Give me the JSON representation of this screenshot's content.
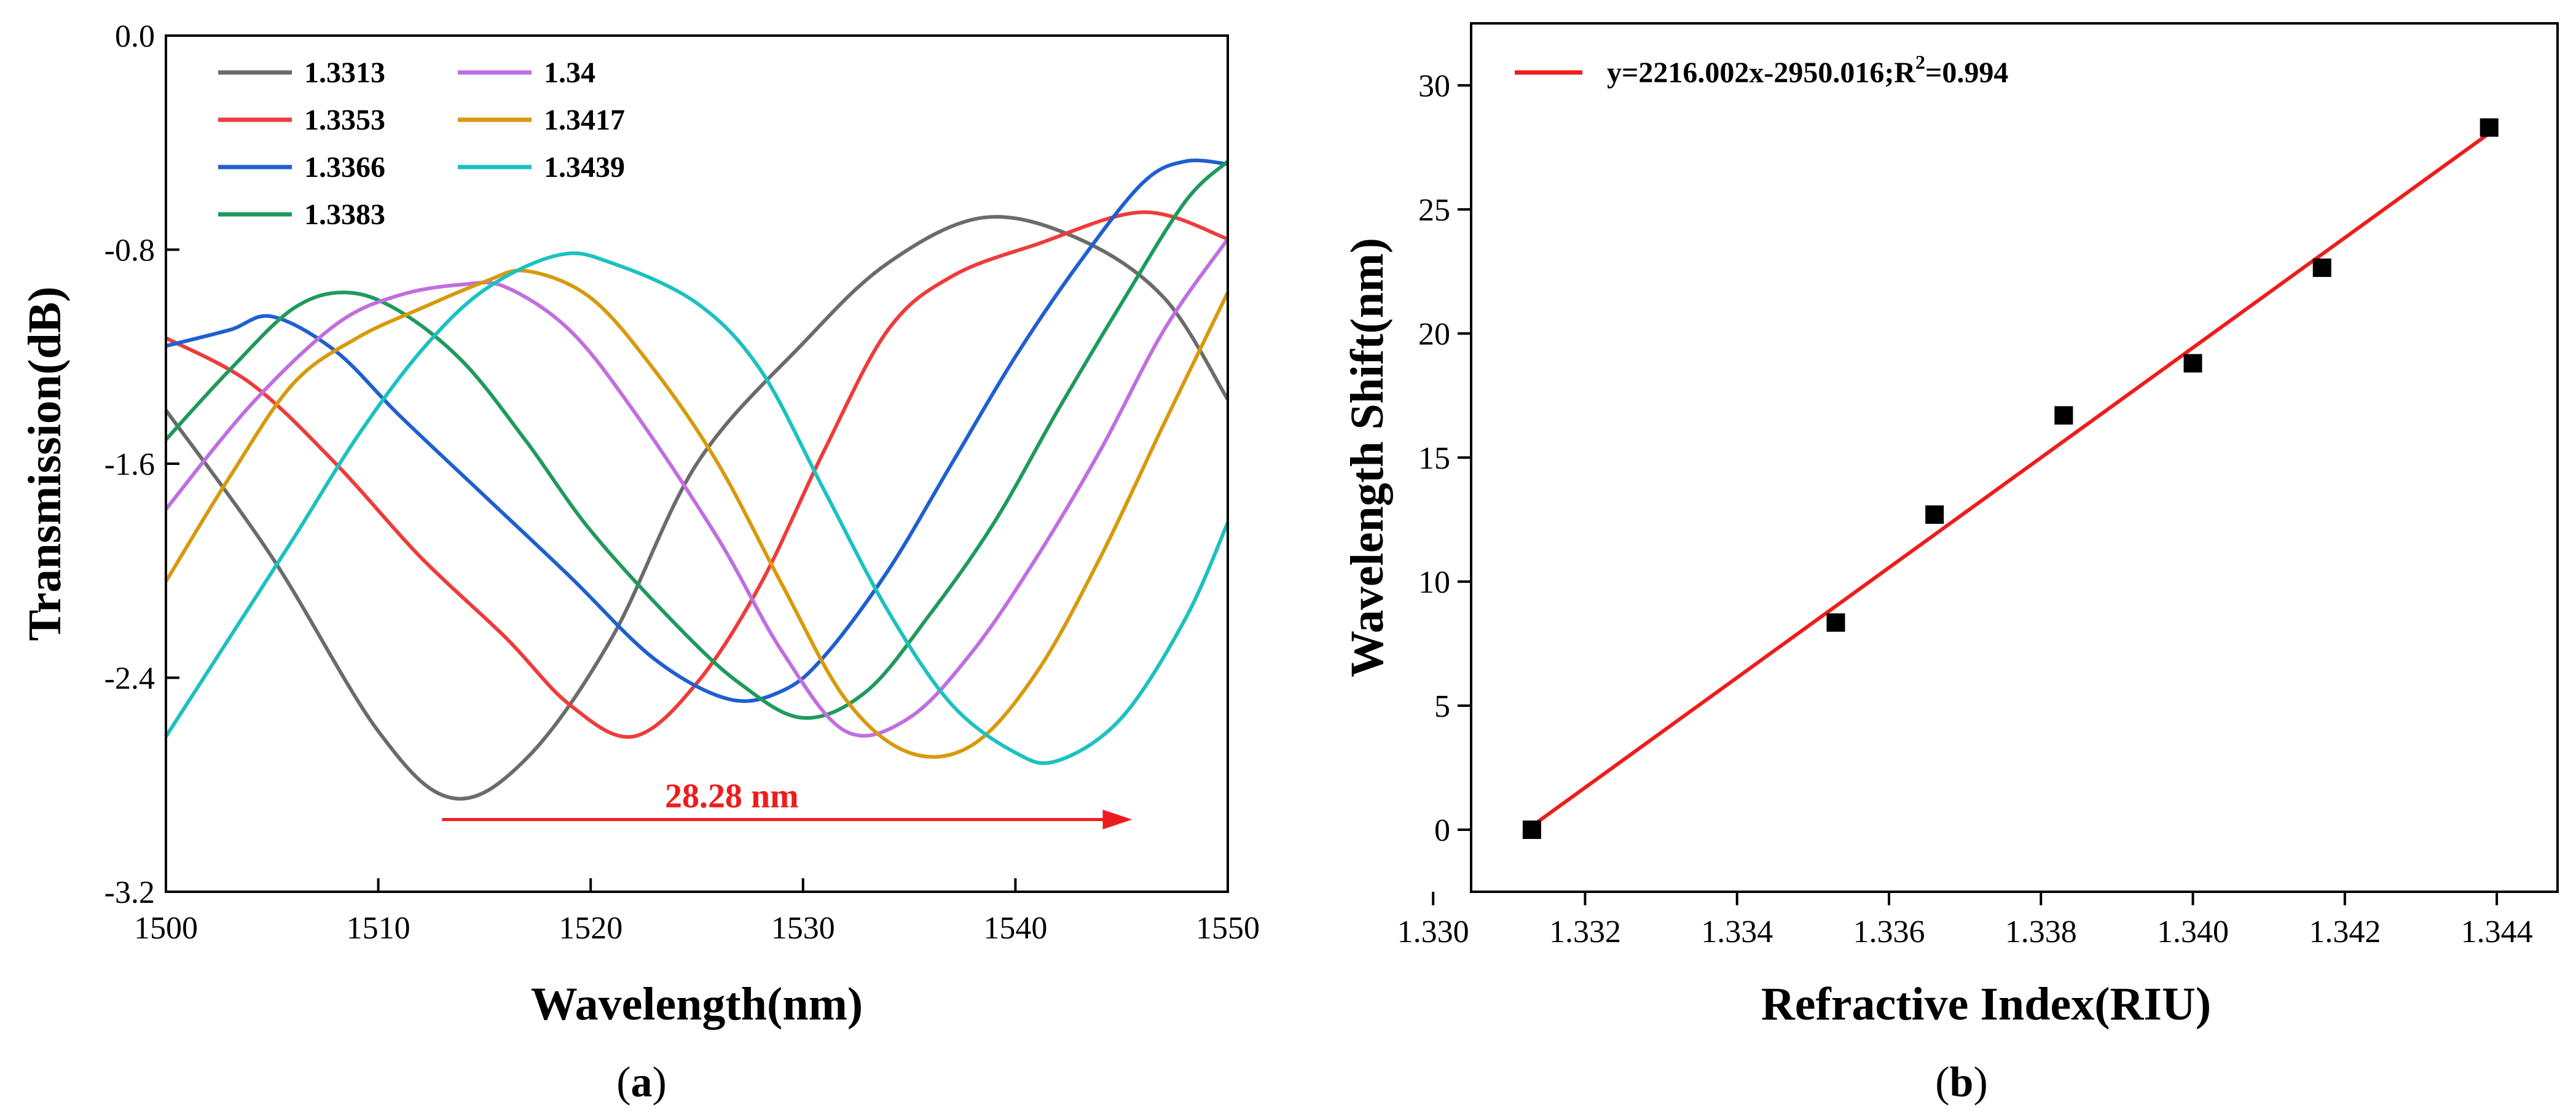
{
  "chart_data": [
    {
      "type": "line",
      "panel_label": "(a)",
      "panel_letter": "a",
      "xlabel": "Wavelength(nm)",
      "ylabel": "Transmission(dB)",
      "xlim": [
        1500,
        1550
      ],
      "ylim": [
        -3.2,
        0.0
      ],
      "x_ticks": [
        1500,
        1510,
        1520,
        1530,
        1540,
        1550
      ],
      "y_ticks": [
        0.0,
        -0.8,
        -1.6,
        -2.4,
        -3.2
      ],
      "y_tick_labels": [
        "0.0",
        "-0.8",
        "-1.6",
        "-2.4",
        "-3.2"
      ],
      "legend_columns": 2,
      "series": [
        {
          "name": "1.3313",
          "color": "#6b6b6b",
          "points": [
            [
              1500,
              -1.4
            ],
            [
              1505,
              -1.95
            ],
            [
              1510,
              -2.6
            ],
            [
              1513.5,
              -2.85
            ],
            [
              1517,
              -2.7
            ],
            [
              1521,
              -2.25
            ],
            [
              1525,
              -1.6
            ],
            [
              1530,
              -1.15
            ],
            [
              1534,
              -0.85
            ],
            [
              1538.5,
              -0.68
            ],
            [
              1543,
              -0.76
            ],
            [
              1547,
              -0.98
            ],
            [
              1550,
              -1.36
            ]
          ]
        },
        {
          "name": "1.3353",
          "color": "#ee3b3b",
          "points": [
            [
              1500,
              -1.13
            ],
            [
              1504,
              -1.3
            ],
            [
              1508,
              -1.6
            ],
            [
              1512,
              -1.95
            ],
            [
              1516,
              -2.25
            ],
            [
              1519,
              -2.5
            ],
            [
              1522,
              -2.62
            ],
            [
              1525,
              -2.42
            ],
            [
              1528,
              -2.05
            ],
            [
              1531,
              -1.55
            ],
            [
              1534,
              -1.1
            ],
            [
              1537,
              -0.9
            ],
            [
              1541,
              -0.78
            ],
            [
              1546,
              -0.66
            ],
            [
              1550,
              -0.76
            ]
          ]
        },
        {
          "name": "1.3366",
          "color": "#1f5fd0",
          "points": [
            [
              1500,
              -1.16
            ],
            [
              1503,
              -1.1
            ],
            [
              1505,
              -1.05
            ],
            [
              1508,
              -1.18
            ],
            [
              1511,
              -1.42
            ],
            [
              1515,
              -1.72
            ],
            [
              1519,
              -2.02
            ],
            [
              1523,
              -2.33
            ],
            [
              1526.5,
              -2.48
            ],
            [
              1529,
              -2.45
            ],
            [
              1531,
              -2.32
            ],
            [
              1534,
              -2.0
            ],
            [
              1537,
              -1.6
            ],
            [
              1540,
              -1.2
            ],
            [
              1543,
              -0.85
            ],
            [
              1546,
              -0.55
            ],
            [
              1548,
              -0.47
            ],
            [
              1550,
              -0.48
            ]
          ]
        },
        {
          "name": "1.3383",
          "color": "#1f9a5c",
          "points": [
            [
              1500,
              -1.51
            ],
            [
              1503,
              -1.25
            ],
            [
              1506,
              -1.02
            ],
            [
              1508.5,
              -0.96
            ],
            [
              1511,
              -1.03
            ],
            [
              1514,
              -1.22
            ],
            [
              1517,
              -1.52
            ],
            [
              1520,
              -1.85
            ],
            [
              1524,
              -2.2
            ],
            [
              1527,
              -2.42
            ],
            [
              1530,
              -2.55
            ],
            [
              1533,
              -2.45
            ],
            [
              1536,
              -2.16
            ],
            [
              1539,
              -1.82
            ],
            [
              1542,
              -1.4
            ],
            [
              1545,
              -1.0
            ],
            [
              1548,
              -0.62
            ],
            [
              1550,
              -0.47
            ]
          ]
        },
        {
          "name": "1.34",
          "color": "#c06ee0",
          "points": [
            [
              1500,
              -1.77
            ],
            [
              1504,
              -1.38
            ],
            [
              1508,
              -1.08
            ],
            [
              1511,
              -0.97
            ],
            [
              1514,
              -0.93
            ],
            [
              1516,
              -0.94
            ],
            [
              1519,
              -1.1
            ],
            [
              1522,
              -1.4
            ],
            [
              1526,
              -1.88
            ],
            [
              1529,
              -2.3
            ],
            [
              1532,
              -2.6
            ],
            [
              1535,
              -2.55
            ],
            [
              1538,
              -2.3
            ],
            [
              1541,
              -1.95
            ],
            [
              1544,
              -1.55
            ],
            [
              1547,
              -1.1
            ],
            [
              1550,
              -0.76
            ]
          ]
        },
        {
          "name": "1.3417",
          "color": "#d79a0d",
          "points": [
            [
              1500,
              -2.04
            ],
            [
              1503,
              -1.65
            ],
            [
              1506,
              -1.3
            ],
            [
              1509,
              -1.13
            ],
            [
              1512,
              -1.02
            ],
            [
              1515,
              -0.92
            ],
            [
              1517,
              -0.88
            ],
            [
              1520,
              -0.98
            ],
            [
              1523,
              -1.25
            ],
            [
              1526,
              -1.6
            ],
            [
              1529,
              -2.05
            ],
            [
              1532,
              -2.48
            ],
            [
              1535,
              -2.68
            ],
            [
              1538,
              -2.65
            ],
            [
              1541,
              -2.38
            ],
            [
              1544,
              -1.95
            ],
            [
              1547,
              -1.45
            ],
            [
              1550,
              -0.96
            ]
          ]
        },
        {
          "name": "1.3439",
          "color": "#1cc1c1",
          "points": [
            [
              1500,
              -2.62
            ],
            [
              1503,
              -2.25
            ],
            [
              1506,
              -1.88
            ],
            [
              1509,
              -1.5
            ],
            [
              1512,
              -1.18
            ],
            [
              1515,
              -0.95
            ],
            [
              1518.5,
              -0.82
            ],
            [
              1521,
              -0.85
            ],
            [
              1525,
              -1.0
            ],
            [
              1528,
              -1.25
            ],
            [
              1531,
              -1.7
            ],
            [
              1534,
              -2.15
            ],
            [
              1537,
              -2.5
            ],
            [
              1540,
              -2.68
            ],
            [
              1542,
              -2.71
            ],
            [
              1545,
              -2.55
            ],
            [
              1548,
              -2.18
            ],
            [
              1550,
              -1.82
            ]
          ]
        }
      ],
      "annotation": {
        "text": "28.28 nm",
        "x_start": 1513,
        "x_end": 1545.5,
        "y": -2.93,
        "color": "#ee1c1c"
      }
    },
    {
      "type": "scatter",
      "panel_label": "(b)",
      "panel_letter": "b",
      "xlabel": "Refractive Index(RIU)",
      "ylabel": "Wavelength Shift(nm)",
      "xlim": [
        1.3305,
        1.3448
      ],
      "ylim": [
        -2.5,
        32.5
      ],
      "x_ticks": [
        1.33,
        1.332,
        1.334,
        1.336,
        1.338,
        1.34,
        1.342,
        1.344
      ],
      "x_tick_labels": [
        "1.330",
        "1.332",
        "1.334",
        "1.336",
        "1.338",
        "1.340",
        "1.342",
        "1.344"
      ],
      "y_ticks": [
        0,
        5,
        10,
        15,
        20,
        25,
        30
      ],
      "y_tick_labels": [
        "0",
        "5",
        "10",
        "15",
        "20",
        "25",
        "30"
      ],
      "points": [
        [
          1.3313,
          0.0
        ],
        [
          1.3353,
          8.35
        ],
        [
          1.3366,
          12.7
        ],
        [
          1.3383,
          16.7
        ],
        [
          1.34,
          18.8
        ],
        [
          1.3417,
          22.65
        ],
        [
          1.3439,
          28.3
        ]
      ],
      "fit": {
        "slope": 2216.002,
        "intercept": -2950.016,
        "x_range": [
          1.3313,
          1.3439
        ],
        "color": "#ee1c1c",
        "legend_prefix": "y=2216.002x-2950.016;R",
        "legend_sup": "2",
        "legend_suffix": "=0.994"
      }
    }
  ]
}
